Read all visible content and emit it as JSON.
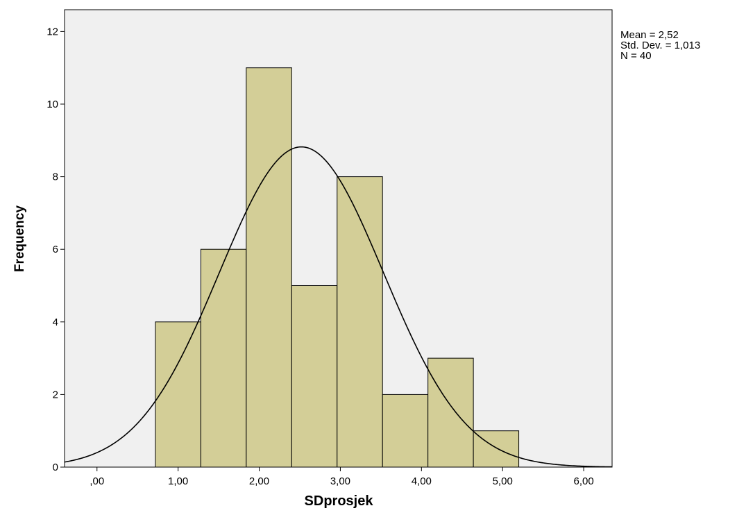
{
  "chart_data": {
    "type": "bar",
    "subtype": "histogram",
    "xlabel": "SDprosjek",
    "ylabel": "Frequency",
    "xlim": [
      -0.4,
      6.35
    ],
    "ylim": [
      0,
      12.6
    ],
    "x_ticks": [
      {
        "value": 0,
        "label": ",00"
      },
      {
        "value": 1,
        "label": "1,00"
      },
      {
        "value": 2,
        "label": "2,00"
      },
      {
        "value": 3,
        "label": "3,00"
      },
      {
        "value": 4,
        "label": "4,00"
      },
      {
        "value": 5,
        "label": "5,00"
      },
      {
        "value": 6,
        "label": "6,00"
      }
    ],
    "y_ticks": [
      {
        "value": 0,
        "label": "0"
      },
      {
        "value": 2,
        "label": "2"
      },
      {
        "value": 4,
        "label": "4"
      },
      {
        "value": 6,
        "label": "6"
      },
      {
        "value": 8,
        "label": "8"
      },
      {
        "value": 10,
        "label": "10"
      },
      {
        "value": 12,
        "label": "12"
      }
    ],
    "bins": [
      {
        "x0": 0.72,
        "x1": 1.28,
        "count": 4
      },
      {
        "x0": 1.28,
        "x1": 1.84,
        "count": 6
      },
      {
        "x0": 1.84,
        "x1": 2.4,
        "count": 11
      },
      {
        "x0": 2.4,
        "x1": 2.96,
        "count": 5
      },
      {
        "x0": 2.96,
        "x1": 3.52,
        "count": 8
      },
      {
        "x0": 3.52,
        "x1": 4.08,
        "count": 2
      },
      {
        "x0": 4.08,
        "x1": 4.64,
        "count": 3
      },
      {
        "x0": 4.64,
        "x1": 5.2,
        "count": 1
      }
    ],
    "normal_curve": {
      "mean": 2.52,
      "std": 1.013,
      "n": 40
    },
    "stats_lines": [
      "Mean = 2,52",
      "Std. Dev. = 1,013",
      "N = 40"
    ],
    "colors": {
      "plot_background": "#f0f0f0",
      "bar_fill": "#d3ce97",
      "bar_stroke": "#000000",
      "curve": "#000000"
    }
  }
}
